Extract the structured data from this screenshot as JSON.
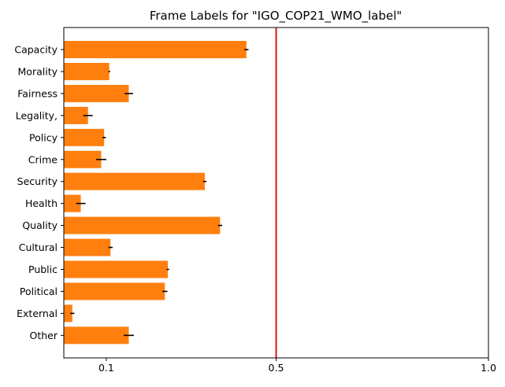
{
  "chart_data": {
    "type": "bar",
    "orientation": "horizontal",
    "title": "Frame Labels for \"IGO_COP21_WMO_label\"",
    "xlabel": "",
    "ylabel": "",
    "xlim": [
      0.0,
      1.0
    ],
    "xticks": [
      0.1,
      0.5,
      1.0
    ],
    "xtick_labels": [
      "0.1",
      "0.5",
      "1.0"
    ],
    "grid": false,
    "bar_color": "#ff7f0e",
    "error_color": "#000000",
    "reference_line": {
      "x": 0.5,
      "color": "#e00000"
    },
    "categories": [
      "Capacity",
      "Morality",
      "Fairness",
      "Legality,",
      "Policy",
      "Crime",
      "Security",
      "Health",
      "Quality",
      "Cultural",
      "Public",
      "Political",
      "External",
      "Other"
    ],
    "values": [
      0.43,
      0.107,
      0.153,
      0.057,
      0.095,
      0.088,
      0.332,
      0.04,
      0.368,
      0.11,
      0.245,
      0.238,
      0.02,
      0.153
    ],
    "errors": [
      0.005,
      0.002,
      0.01,
      0.011,
      0.004,
      0.012,
      0.004,
      0.011,
      0.005,
      0.005,
      0.003,
      0.006,
      0.005,
      0.012
    ]
  }
}
